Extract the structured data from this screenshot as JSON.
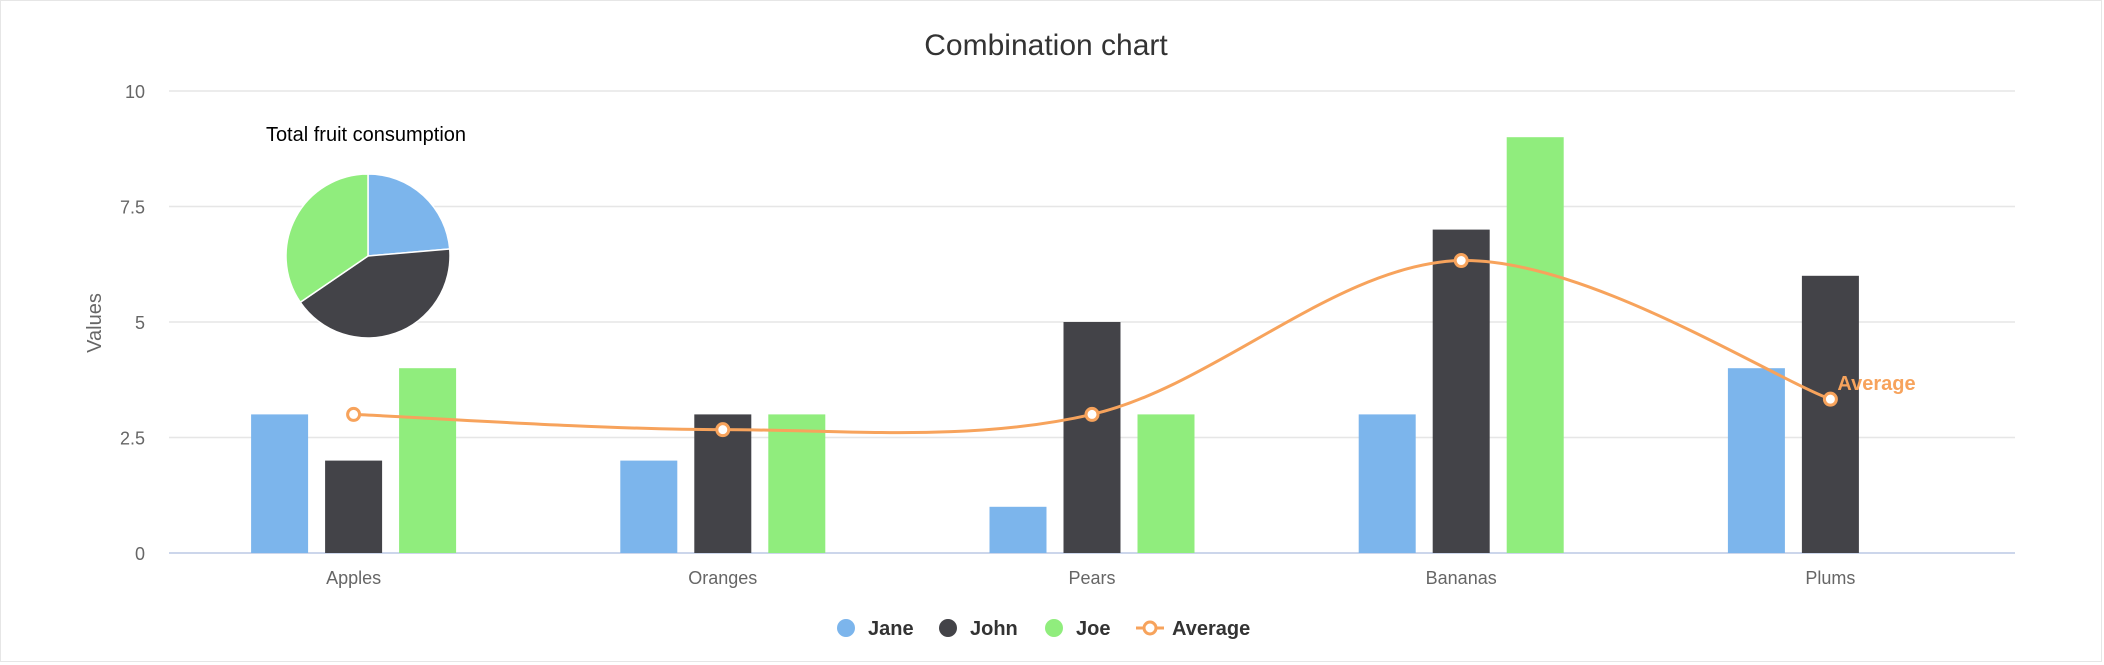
{
  "chart_data": [
    {
      "type": "bar",
      "title": "Combination chart",
      "xlabel": "",
      "ylabel": "Values",
      "ylim": [
        0,
        10
      ],
      "yticks": [
        "0",
        "2.5",
        "5",
        "7.5",
        "10"
      ],
      "ytick_values": [
        0,
        2.5,
        5,
        7.5,
        10
      ],
      "categories": [
        "Apples",
        "Oranges",
        "Pears",
        "Bananas",
        "Plums"
      ],
      "grid": true,
      "legend": "bottom-center",
      "series": [
        {
          "name": "Jane",
          "type": "bar",
          "color": "#7cb5ec",
          "values": [
            3,
            2,
            1,
            3,
            4
          ]
        },
        {
          "name": "John",
          "type": "bar",
          "color": "#434348",
          "values": [
            2,
            3,
            5,
            7,
            6
          ]
        },
        {
          "name": "Joe",
          "type": "bar",
          "color": "#90ed7d",
          "values": [
            4,
            3,
            3,
            9,
            0
          ]
        },
        {
          "name": "Average",
          "type": "spline",
          "color": "#f7a35c",
          "values": [
            3,
            2.67,
            3,
            6.33,
            3.33
          ],
          "end_label": "Average"
        }
      ]
    },
    {
      "type": "pie",
      "title": "Total fruit consumption",
      "slices": [
        {
          "name": "Jane",
          "value": 13,
          "color": "#7cb5ec"
        },
        {
          "name": "John",
          "value": 23,
          "color": "#434348"
        },
        {
          "name": "Joe",
          "value": 19,
          "color": "#90ed7d"
        }
      ]
    }
  ]
}
